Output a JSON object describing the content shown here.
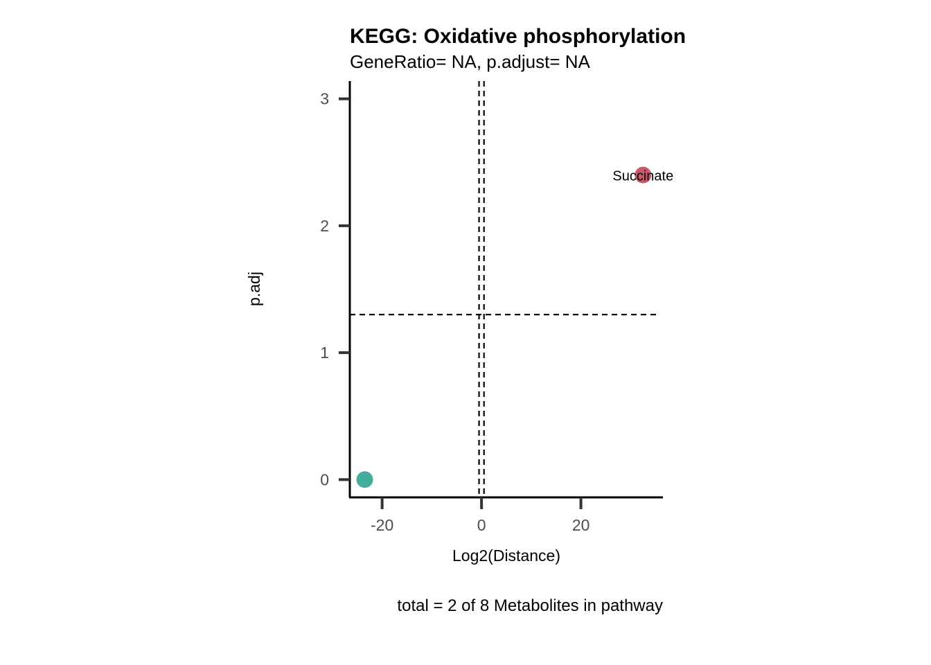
{
  "chart_data": {
    "type": "scatter",
    "title": "KEGG: Oxidative phosphorylation",
    "subtitle": "GeneRatio= NA, p.adjust= NA",
    "xlabel": "Log2(Distance)",
    "ylabel": "p.adj",
    "caption": "total = 2 of 8 Metabolites in pathway",
    "xlim": [
      -26.5,
      36.5
    ],
    "ylim": [
      -0.14,
      3.14
    ],
    "x_ticks": [
      -20,
      0,
      20
    ],
    "x_tick_labels": [
      "-20",
      "0",
      "20"
    ],
    "y_ticks": [
      0,
      1,
      2,
      3
    ],
    "y_tick_labels": [
      "0",
      "1",
      "2",
      "3"
    ],
    "vlines": [
      -0.5,
      0.5
    ],
    "hline": 1.3,
    "grid": false,
    "points": [
      {
        "x": -23.5,
        "y": 0.0,
        "color": "#45ad9c",
        "label": ""
      },
      {
        "x": 32.5,
        "y": 2.4,
        "color": "#c85a6e",
        "label": "Succinate"
      }
    ]
  }
}
